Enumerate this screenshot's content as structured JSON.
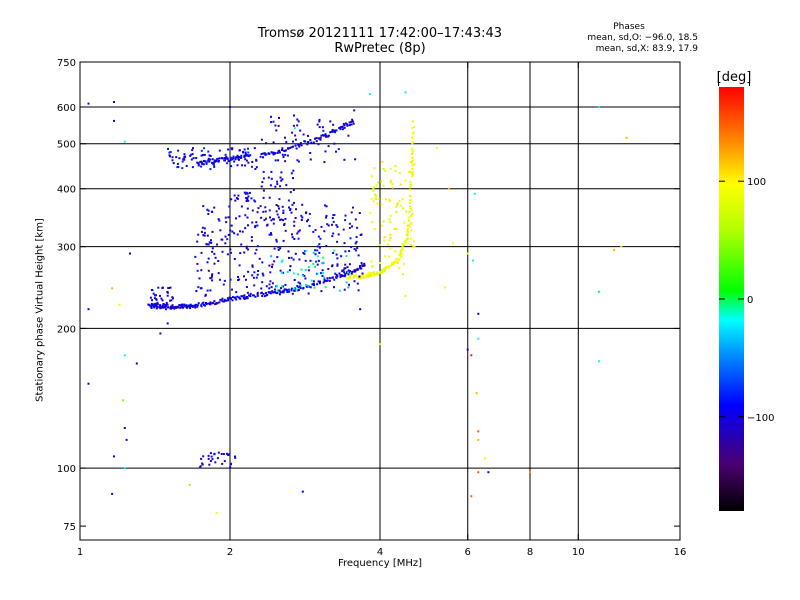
{
  "chart_data": {
    "type": "scatter",
    "title": "Tromsø 20121111 17:42:00–17:43:43",
    "subtitle": "RwPretec (8p)",
    "xlabel": "Frequency [MHz]",
    "ylabel": "Stationary phase Virtual Height [km]",
    "x_scale": "log",
    "y_scale": "log",
    "xlim": [
      1,
      16
    ],
    "ylim": [
      70,
      750
    ],
    "x_ticks": [
      "1",
      "2",
      "4",
      "6",
      "8",
      "10",
      "16"
    ],
    "y_ticks": [
      "75",
      "100",
      "200",
      "300",
      "400",
      "500",
      "600",
      "750"
    ],
    "x_tick_values": [
      1,
      2,
      4,
      6,
      8,
      10,
      16
    ],
    "y_tick_values": [
      75,
      100,
      200,
      300,
      400,
      500,
      600,
      750
    ],
    "x_grid": [
      2,
      4,
      6,
      8,
      10
    ],
    "y_grid": [
      100,
      200,
      300,
      400,
      500,
      600
    ],
    "grid": true,
    "colorbar": {
      "label": "[deg]",
      "ticks": [
        "100",
        "0",
        "−100"
      ],
      "tick_values": [
        100,
        0,
        -100
      ],
      "range": [
        -180,
        180
      ]
    },
    "phase_stats": {
      "heading": "Phases",
      "o_mode": "mean, sd,O: −96.0, 18.5",
      "x_mode": "mean, sd,X:  83.9, 17.9"
    },
    "traces": [
      {
        "name": "",
        "x": [
          1.38,
          1.42,
          1.46,
          1.5,
          1.55,
          1.6,
          1.65,
          1.7,
          1.8,
          1.9,
          2.0,
          2.1,
          2.2,
          2.35,
          2.5,
          2.65,
          2.8,
          3.0,
          3.2,
          3.4,
          3.6,
          3.75
        ],
        "y": [
          225,
          224,
          223,
          223,
          222,
          223,
          223,
          224,
          226,
          229,
          231,
          233,
          235,
          237,
          239,
          242,
          245,
          250,
          256,
          262,
          268,
          275
        ],
        "phase": -100
      },
      {
        "name": "",
        "x": [
          3.45,
          3.6,
          3.75,
          3.9,
          4.05,
          4.2,
          4.35,
          4.45,
          4.55,
          4.6,
          4.62,
          4.64,
          4.66
        ],
        "y": [
          258,
          258,
          260,
          262,
          266,
          272,
          282,
          298,
          318,
          350,
          410,
          480,
          560
        ],
        "phase": 90
      },
      {
        "name": "",
        "x": [
          1.72,
          1.8,
          1.9,
          2.0,
          2.1,
          2.2
        ],
        "y": [
          452,
          457,
          461,
          465,
          468,
          470
        ],
        "phase": -100
      },
      {
        "name": "",
        "x": [
          2.3,
          2.45,
          2.6,
          2.8,
          3.0,
          3.2,
          3.4,
          3.55
        ],
        "y": [
          470,
          478,
          488,
          500,
          512,
          528,
          545,
          560
        ],
        "phase": -100
      }
    ],
    "clouds": [
      {
        "x": [
          1.7,
          3.7
        ],
        "y": [
          235,
          370
        ],
        "count": 340,
        "phase": -100
      },
      {
        "x": [
          2.3,
          2.7
        ],
        "y": [
          340,
          450
        ],
        "count": 40,
        "phase": -100
      },
      {
        "x": [
          2.0,
          2.25
        ],
        "y": [
          375,
          395
        ],
        "count": 20,
        "phase": -100
      },
      {
        "x": [
          1.5,
          2.3
        ],
        "y": [
          440,
          490
        ],
        "count": 90,
        "phase": -95
      },
      {
        "x": [
          2.3,
          3.6
        ],
        "y": [
          455,
          580
        ],
        "count": 60,
        "phase": -100
      },
      {
        "x": [
          1.38,
          1.55
        ],
        "y": [
          220,
          245
        ],
        "count": 40,
        "phase": -100
      },
      {
        "x": [
          1.72,
          2.05
        ],
        "y": [
          100,
          108
        ],
        "count": 30,
        "phase": -100
      },
      {
        "x": [
          2.4,
          3.5
        ],
        "y": [
          238,
          300
        ],
        "count": 40,
        "phase": -20
      },
      {
        "x": [
          3.8,
          4.7
        ],
        "y": [
          260,
          460
        ],
        "count": 90,
        "phase": 90
      }
    ],
    "stray_points": [
      {
        "x": 1.04,
        "y": 220,
        "phase": -90
      },
      {
        "x": 1.04,
        "y": 610,
        "phase": -100
      },
      {
        "x": 1.17,
        "y": 615,
        "phase": -100
      },
      {
        "x": 1.17,
        "y": 560,
        "phase": -100
      },
      {
        "x": 1.23,
        "y": 505,
        "phase": -20
      },
      {
        "x": 1.26,
        "y": 290,
        "phase": -100
      },
      {
        "x": 1.16,
        "y": 244,
        "phase": 120
      },
      {
        "x": 1.2,
        "y": 225,
        "phase": 100
      },
      {
        "x": 1.45,
        "y": 195,
        "phase": -100
      },
      {
        "x": 1.5,
        "y": 205,
        "phase": -100
      },
      {
        "x": 1.23,
        "y": 175,
        "phase": -20
      },
      {
        "x": 1.3,
        "y": 168,
        "phase": -100
      },
      {
        "x": 1.04,
        "y": 152,
        "phase": -90
      },
      {
        "x": 1.22,
        "y": 140,
        "phase": 40
      },
      {
        "x": 1.23,
        "y": 122,
        "phase": -100
      },
      {
        "x": 1.24,
        "y": 115,
        "phase": -100
      },
      {
        "x": 1.17,
        "y": 106,
        "phase": -100
      },
      {
        "x": 1.23,
        "y": 100,
        "phase": -20
      },
      {
        "x": 1.16,
        "y": 88,
        "phase": -100
      },
      {
        "x": 1.66,
        "y": 92,
        "phase": 50
      },
      {
        "x": 1.88,
        "y": 80,
        "phase": 100
      },
      {
        "x": 2.8,
        "y": 89,
        "phase": -90
      },
      {
        "x": 2.0,
        "y": 600,
        "phase": -100
      },
      {
        "x": 2.7,
        "y": 540,
        "phase": -20
      },
      {
        "x": 3.82,
        "y": 640,
        "phase": -20
      },
      {
        "x": 4.5,
        "y": 645,
        "phase": -20
      },
      {
        "x": 4.5,
        "y": 235,
        "phase": 100
      },
      {
        "x": 3.65,
        "y": 220,
        "phase": -100
      },
      {
        "x": 4.0,
        "y": 185,
        "phase": 100
      },
      {
        "x": 5.5,
        "y": 400,
        "phase": 120
      },
      {
        "x": 5.2,
        "y": 490,
        "phase": 100
      },
      {
        "x": 5.6,
        "y": 305,
        "phase": 100
      },
      {
        "x": 6.0,
        "y": 290,
        "phase": 90
      },
      {
        "x": 6.2,
        "y": 390,
        "phase": -20
      },
      {
        "x": 5.4,
        "y": 245,
        "phase": 100
      },
      {
        "x": 6.15,
        "y": 280,
        "phase": -20
      },
      {
        "x": 6.3,
        "y": 215,
        "phase": -100
      },
      {
        "x": 6.3,
        "y": 190,
        "phase": -20
      },
      {
        "x": 6.0,
        "y": 180,
        "phase": -100
      },
      {
        "x": 6.1,
        "y": 175,
        "phase": 170
      },
      {
        "x": 6.25,
        "y": 145,
        "phase": 120
      },
      {
        "x": 6.3,
        "y": 120,
        "phase": 150
      },
      {
        "x": 6.3,
        "y": 115,
        "phase": 120
      },
      {
        "x": 6.5,
        "y": 105,
        "phase": 100
      },
      {
        "x": 6.3,
        "y": 98,
        "phase": 150
      },
      {
        "x": 6.6,
        "y": 98,
        "phase": -100
      },
      {
        "x": 6.1,
        "y": 87,
        "phase": 150
      },
      {
        "x": 8.0,
        "y": 98,
        "phase": 130
      },
      {
        "x": 11.0,
        "y": 600,
        "phase": -20
      },
      {
        "x": 12.5,
        "y": 515,
        "phase": 120
      },
      {
        "x": 11.0,
        "y": 240,
        "phase": 0
      },
      {
        "x": 11.8,
        "y": 295,
        "phase": 120
      },
      {
        "x": 12.2,
        "y": 300,
        "phase": 100
      },
      {
        "x": 11.0,
        "y": 170,
        "phase": -20
      },
      {
        "x": 3.55,
        "y": 590,
        "phase": -100
      }
    ]
  }
}
